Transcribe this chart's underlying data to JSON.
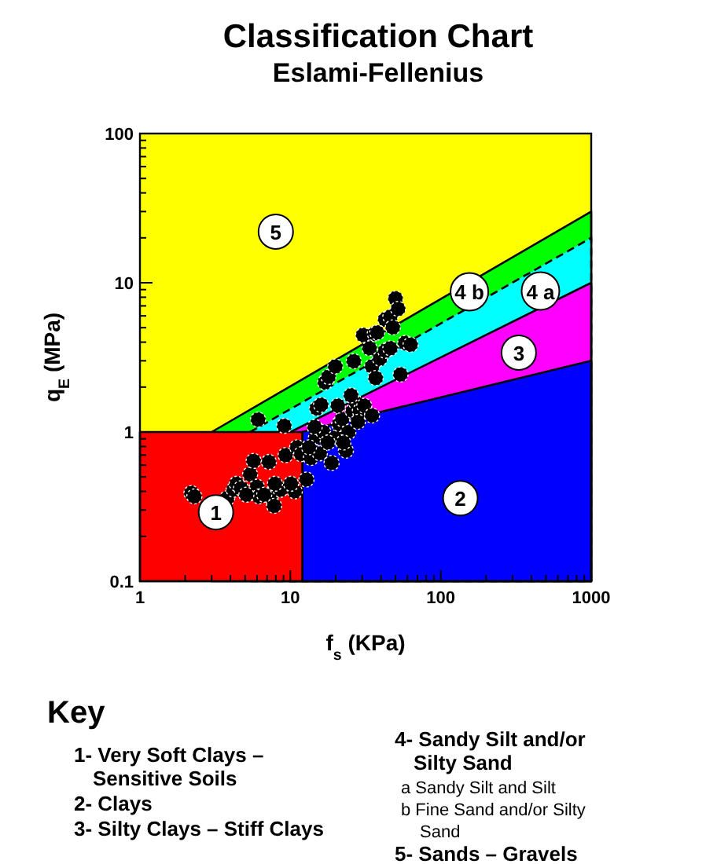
{
  "chart_data": {
    "type": "scatter",
    "title": "Classification Chart",
    "subtitle": "Eslami-Fellenius",
    "xlabel": "f$_{s}$ (KPa)",
    "ylabel": "q$_{E}$ (MPa)",
    "log": "xy",
    "xlim": [
      1,
      1000
    ],
    "ylim": [
      0.1,
      100
    ],
    "xticks": [
      1,
      {
        "value": 2,
        "label": null
      },
      {
        "value": 3,
        "label": null
      },
      {
        "value": 4,
        "label": null
      },
      {
        "value": 5,
        "label": null
      },
      {
        "value": 6,
        "label": null
      },
      {
        "value": 7,
        "label": null
      },
      {
        "value": 8,
        "label": null
      },
      {
        "value": 9,
        "label": null
      },
      10,
      {
        "value": 20,
        "label": null
      },
      {
        "value": 30,
        "label": null
      },
      {
        "value": 40,
        "label": null
      },
      {
        "value": 50,
        "label": null
      },
      {
        "value": 60,
        "label": null
      },
      {
        "value": 70,
        "label": null
      },
      {
        "value": 80,
        "label": null
      },
      {
        "value": 90,
        "label": null
      },
      100,
      {
        "value": 200,
        "label": null
      },
      {
        "value": 300,
        "label": null
      },
      {
        "value": 400,
        "label": null
      },
      {
        "value": 500,
        "label": null
      },
      {
        "value": 600,
        "label": null
      },
      {
        "value": 700,
        "label": null
      },
      {
        "value": 800,
        "label": null
      },
      {
        "value": 900,
        "label": null
      },
      1000
    ],
    "yticks": [
      0.1,
      {
        "value": 0.2,
        "label": null
      },
      {
        "value": 0.3,
        "label": null
      },
      {
        "value": 0.4,
        "label": null
      },
      {
        "value": 0.5,
        "label": null
      },
      {
        "value": 0.6,
        "label": null
      },
      {
        "value": 0.7,
        "label": null
      },
      {
        "value": 0.8,
        "label": null
      },
      {
        "value": 0.9,
        "label": null
      },
      1,
      {
        "value": 2,
        "label": null
      },
      {
        "value": 3,
        "label": null
      },
      {
        "value": 4,
        "label": null
      },
      {
        "value": 5,
        "label": null
      },
      {
        "value": 6,
        "label": null
      },
      {
        "value": 7,
        "label": null
      },
      {
        "value": 8,
        "label": null
      },
      {
        "value": 9,
        "label": null
      },
      10,
      {
        "value": 20,
        "label": null
      },
      {
        "value": 30,
        "label": null
      },
      {
        "value": 40,
        "label": null
      },
      {
        "value": 50,
        "label": null
      },
      {
        "value": 60,
        "label": null
      },
      {
        "value": 70,
        "label": null
      },
      {
        "value": 80,
        "label": null
      },
      {
        "value": 90,
        "label": null
      },
      100
    ],
    "series": [
      {
        "type": "area",
        "color": "#00ff00",
        "x": [
          3,
          1000
        ],
        "values": [
          1,
          30
        ],
        "line_style": "solid"
      },
      {
        "type": "area",
        "color": "#00ffff",
        "x": [
          5.4,
          1000
        ],
        "values": [
          1,
          20
        ],
        "line_style": "dashed"
      },
      {
        "type": "area",
        "color": "#ff00ff",
        "x": [
          10,
          1000
        ],
        "values": [
          1,
          10
        ],
        "line_style": "solid"
      },
      {
        "type": "area",
        "color": "#0000ff",
        "x": [
          12,
          36,
          1000
        ],
        "values": [
          1,
          1.33,
          3
        ],
        "line_style": "solid"
      },
      {
        "type": "area",
        "color": "#ff0000",
        "x": [
          1,
          12
        ],
        "values": [
          1,
          1
        ],
        "line_style": "solid"
      },
      {
        "type": "scatter",
        "color": "#000000",
        "marker": "circle",
        "x": [
          2.2,
          2.3,
          3.8,
          4.2,
          4.4,
          4.7,
          5.4,
          5.7,
          6.0,
          6.2,
          7.2,
          7.4,
          7.8,
          8.6,
          9.3,
          10.7,
          11.1,
          11.8,
          12.8,
          13.7,
          14.8,
          15.7,
          16.6,
          18.8,
          19.9,
          21.1,
          22.1,
          23.4,
          24.3,
          26,
          27.5,
          29,
          31,
          34.9,
          6.1,
          9.1,
          15,
          16,
          17,
          17.9,
          19.9,
          26.4,
          30.5,
          33.6,
          36.4,
          37.8,
          34.9,
          36.9,
          39.4,
          42.7,
          46.2,
          42.7,
          46.2,
          50,
          52,
          48,
          54,
          58,
          63,
          13.3,
          17.7,
          22.5,
          14.5,
          20.7,
          25.3,
          28.1,
          10.1,
          6.7,
          7.9,
          5.1
        ],
        "values": [
          0.39,
          0.37,
          0.36,
          0.41,
          0.45,
          0.42,
          0.52,
          0.64,
          0.43,
          0.37,
          0.63,
          0.37,
          0.32,
          0.41,
          0.7,
          0.4,
          0.79,
          0.71,
          0.48,
          0.67,
          0.92,
          0.72,
          1.0,
          0.62,
          0.92,
          1.13,
          1.22,
          0.75,
          1.0,
          1.38,
          1.56,
          1.38,
          1.5,
          1.29,
          1.21,
          1.1,
          1.44,
          1.52,
          2.15,
          2.34,
          2.75,
          2.98,
          4.46,
          3.64,
          4.57,
          4.64,
          2.75,
          2.3,
          3.1,
          3.5,
          3.64,
          5.68,
          5.92,
          7.85,
          6.68,
          5.03,
          2.43,
          3.95,
          3.85,
          0.79,
          0.85,
          0.85,
          1.08,
          1.5,
          1.76,
          1.17,
          0.45,
          0.38,
          0.45,
          0.38
        ]
      }
    ],
    "bands": [
      {
        "axis": "y",
        "from": 0.1,
        "to": 100,
        "color": "#ffff00"
      }
    ],
    "annotations": [
      {
        "text": "5",
        "x": 8,
        "y": 22
      },
      {
        "text": "4 b",
        "x": 155,
        "y": 8.7
      },
      {
        "text": "4 a",
        "x": 460,
        "y": 8.8
      },
      {
        "text": "3",
        "x": 330,
        "y": 3.4
      },
      {
        "text": "2",
        "x": 135,
        "y": 0.36
      },
      {
        "text": "1",
        "x": 3.2,
        "y": 0.29
      },
      "Key",
      "1- Very Soft Clays –",
      "Sensitive Soils",
      "2- Clays",
      "3- Silty Clays – Stiff Clays",
      "4- Sandy Silt and/or",
      "Silty Sand",
      "a Sandy Silt and Silt",
      "b Fine Sand and/or Silty",
      "Sand",
      "5- Sands – Gravels"
    ]
  }
}
